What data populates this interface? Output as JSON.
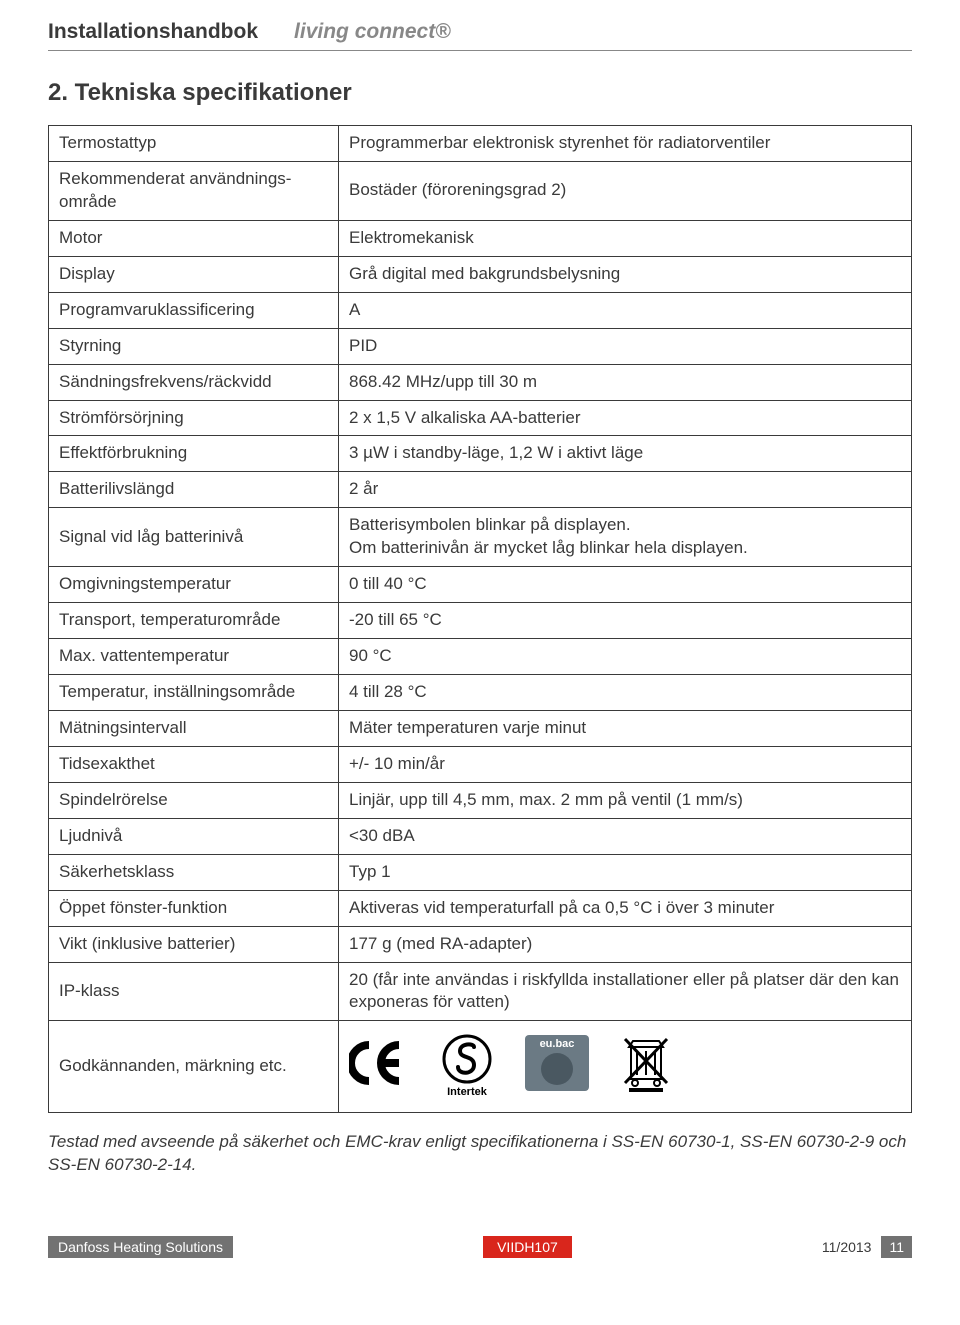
{
  "header": {
    "left": "Installationshandbok",
    "right": "living connect®"
  },
  "section_title": "2. Tekniska specifikationer",
  "table": {
    "rows": [
      {
        "label": "Termostattyp",
        "value": "Programmerbar elektronisk styrenhet för radiatorventiler"
      },
      {
        "label": "Rekommenderat användnings-område",
        "value": "Bostäder (föroreningsgrad 2)"
      },
      {
        "label": "Motor",
        "value": "Elektromekanisk"
      },
      {
        "label": "Display",
        "value": "Grå digital med bakgrundsbelysning"
      },
      {
        "label": "Programvaruklassificering",
        "value": "A"
      },
      {
        "label": "Styrning",
        "value": "PID"
      },
      {
        "label": "Sändningsfrekvens/räckvidd",
        "value": "868.42 MHz/upp till 30 m"
      },
      {
        "label": "Strömförsörjning",
        "value": "2 x 1,5 V alkaliska AA-batterier"
      },
      {
        "label": "Effektförbrukning",
        "value": "3 µW i standby-läge, 1,2 W i aktivt läge"
      },
      {
        "label": "Batterilivslängd",
        "value": "2 år"
      },
      {
        "label": "Signal vid låg batterinivå",
        "value": "Batterisymbolen blinkar på displayen.\nOm batterinivån är mycket låg blinkar hela displayen."
      },
      {
        "label": "Omgivningstemperatur",
        "value": "0 till 40 °C"
      },
      {
        "label": "Transport, temperaturområde",
        "value": "-20 till 65 °C"
      },
      {
        "label": "Max. vattentemperatur",
        "value": "90 °C"
      },
      {
        "label": "Temperatur, inställningsområde",
        "value": "4 till 28 °C"
      },
      {
        "label": "Mätningsintervall",
        "value": "Mäter temperaturen varje minut"
      },
      {
        "label": "Tidsexakthet",
        "value": "+/- 10 min/år"
      },
      {
        "label": "Spindelrörelse",
        "value": "Linjär, upp till 4,5 mm, max. 2 mm på ventil (1 mm/s)"
      },
      {
        "label": "Ljudnivå",
        "value": "<30 dBA"
      },
      {
        "label": "Säkerhetsklass",
        "value": "Typ 1"
      },
      {
        "label": "Öppet fönster-funktion",
        "value": "Aktiveras vid temperaturfall på ca 0,5 °C i över 3 minuter"
      },
      {
        "label": "Vikt (inklusive batterier)",
        "value": "177 g (med RA-adapter)"
      },
      {
        "label": "IP-klass",
        "value": "20 (får inte användas i riskfyllda installationer eller på platser där den kan exponeras för vatten)"
      }
    ],
    "approvals_label": "Godkännanden, märkning etc.",
    "intertek_label": "Intertek",
    "eubac_label": "eu.bac"
  },
  "footer_note": "Testad med avseende på säkerhet och EMC-krav enligt specifikationerna i SS-EN 60730-1, SS-EN 60730-2-9 och SS-EN 60730-2-14.",
  "footer": {
    "left": "Danfoss Heating Solutions",
    "mid": "VIIDH107",
    "date": "11/2013",
    "page": "11"
  },
  "colors": {
    "text": "#3a3a3a",
    "gray": "#888888",
    "footer_gray": "#727272",
    "red": "#d9261c",
    "eubac_bg": "#6b7a84"
  }
}
